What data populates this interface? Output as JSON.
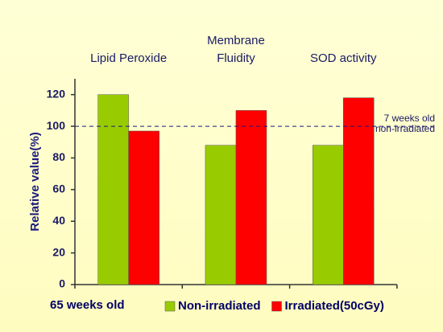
{
  "chart_data": {
    "type": "bar",
    "categories": [
      "Lipid Peroxide",
      "Membrane\nFluidity",
      "SOD activity"
    ],
    "series": [
      {
        "name": "Non-irradiated",
        "color": "#99cc00",
        "values": [
          120,
          88,
          88
        ]
      },
      {
        "name": "Irradiated(50cGy)",
        "color": "#ff0000",
        "values": [
          97,
          110,
          118
        ]
      }
    ],
    "y_label": "Relative value(%)",
    "legend_title": "65 weeks old",
    "reference": {
      "value": 100,
      "label": "7 weeks old\nnon-irradiated"
    },
    "ylim": [
      0,
      130
    ],
    "yticks": [
      0,
      20,
      40,
      60,
      80,
      100,
      120
    ]
  }
}
